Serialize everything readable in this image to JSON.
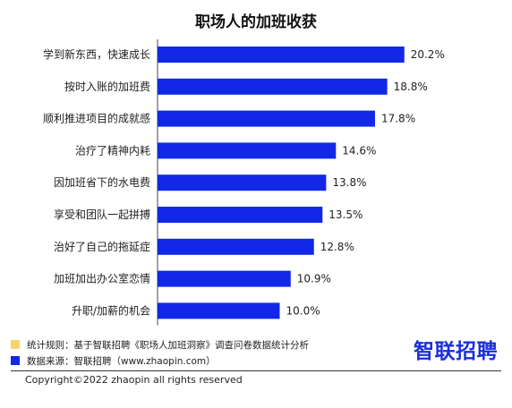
{
  "title": "职场人的加班收获",
  "chart_data": {
    "type": "bar",
    "orientation": "horizontal",
    "title": "职场人的加班收获",
    "categories": [
      "学到新东西，快速成长",
      "按时入账的加班费",
      "顺利推进项目的成就感",
      "治疗了精神内耗",
      "因加班省下的水电费",
      "享受和团队一起拼搏",
      "治好了自己的拖延症",
      "加班加出办公室恋情",
      "升职/加薪的机会"
    ],
    "values": [
      20.2,
      18.8,
      17.8,
      14.6,
      13.8,
      13.5,
      12.8,
      10.9,
      10.0
    ],
    "value_labels": [
      "20.2%",
      "18.8%",
      "17.8%",
      "14.6%",
      "13.8%",
      "13.5%",
      "12.8%",
      "10.9%",
      "10.0%"
    ],
    "xlim": [
      0,
      25
    ],
    "grid": false,
    "bar_color": "#1228e6"
  },
  "legend": [
    {
      "text": "统计规则：基于智联招聘《职场人加班洞察》调查问卷数据统计分析",
      "color": "#f6d36b"
    },
    {
      "text": "数据来源：智联招聘（www.zhaopin.com）",
      "color": "#1228e6"
    }
  ],
  "brand": "智联招聘",
  "copyright": "Copyright©2022 zhaopin all rights reserved"
}
